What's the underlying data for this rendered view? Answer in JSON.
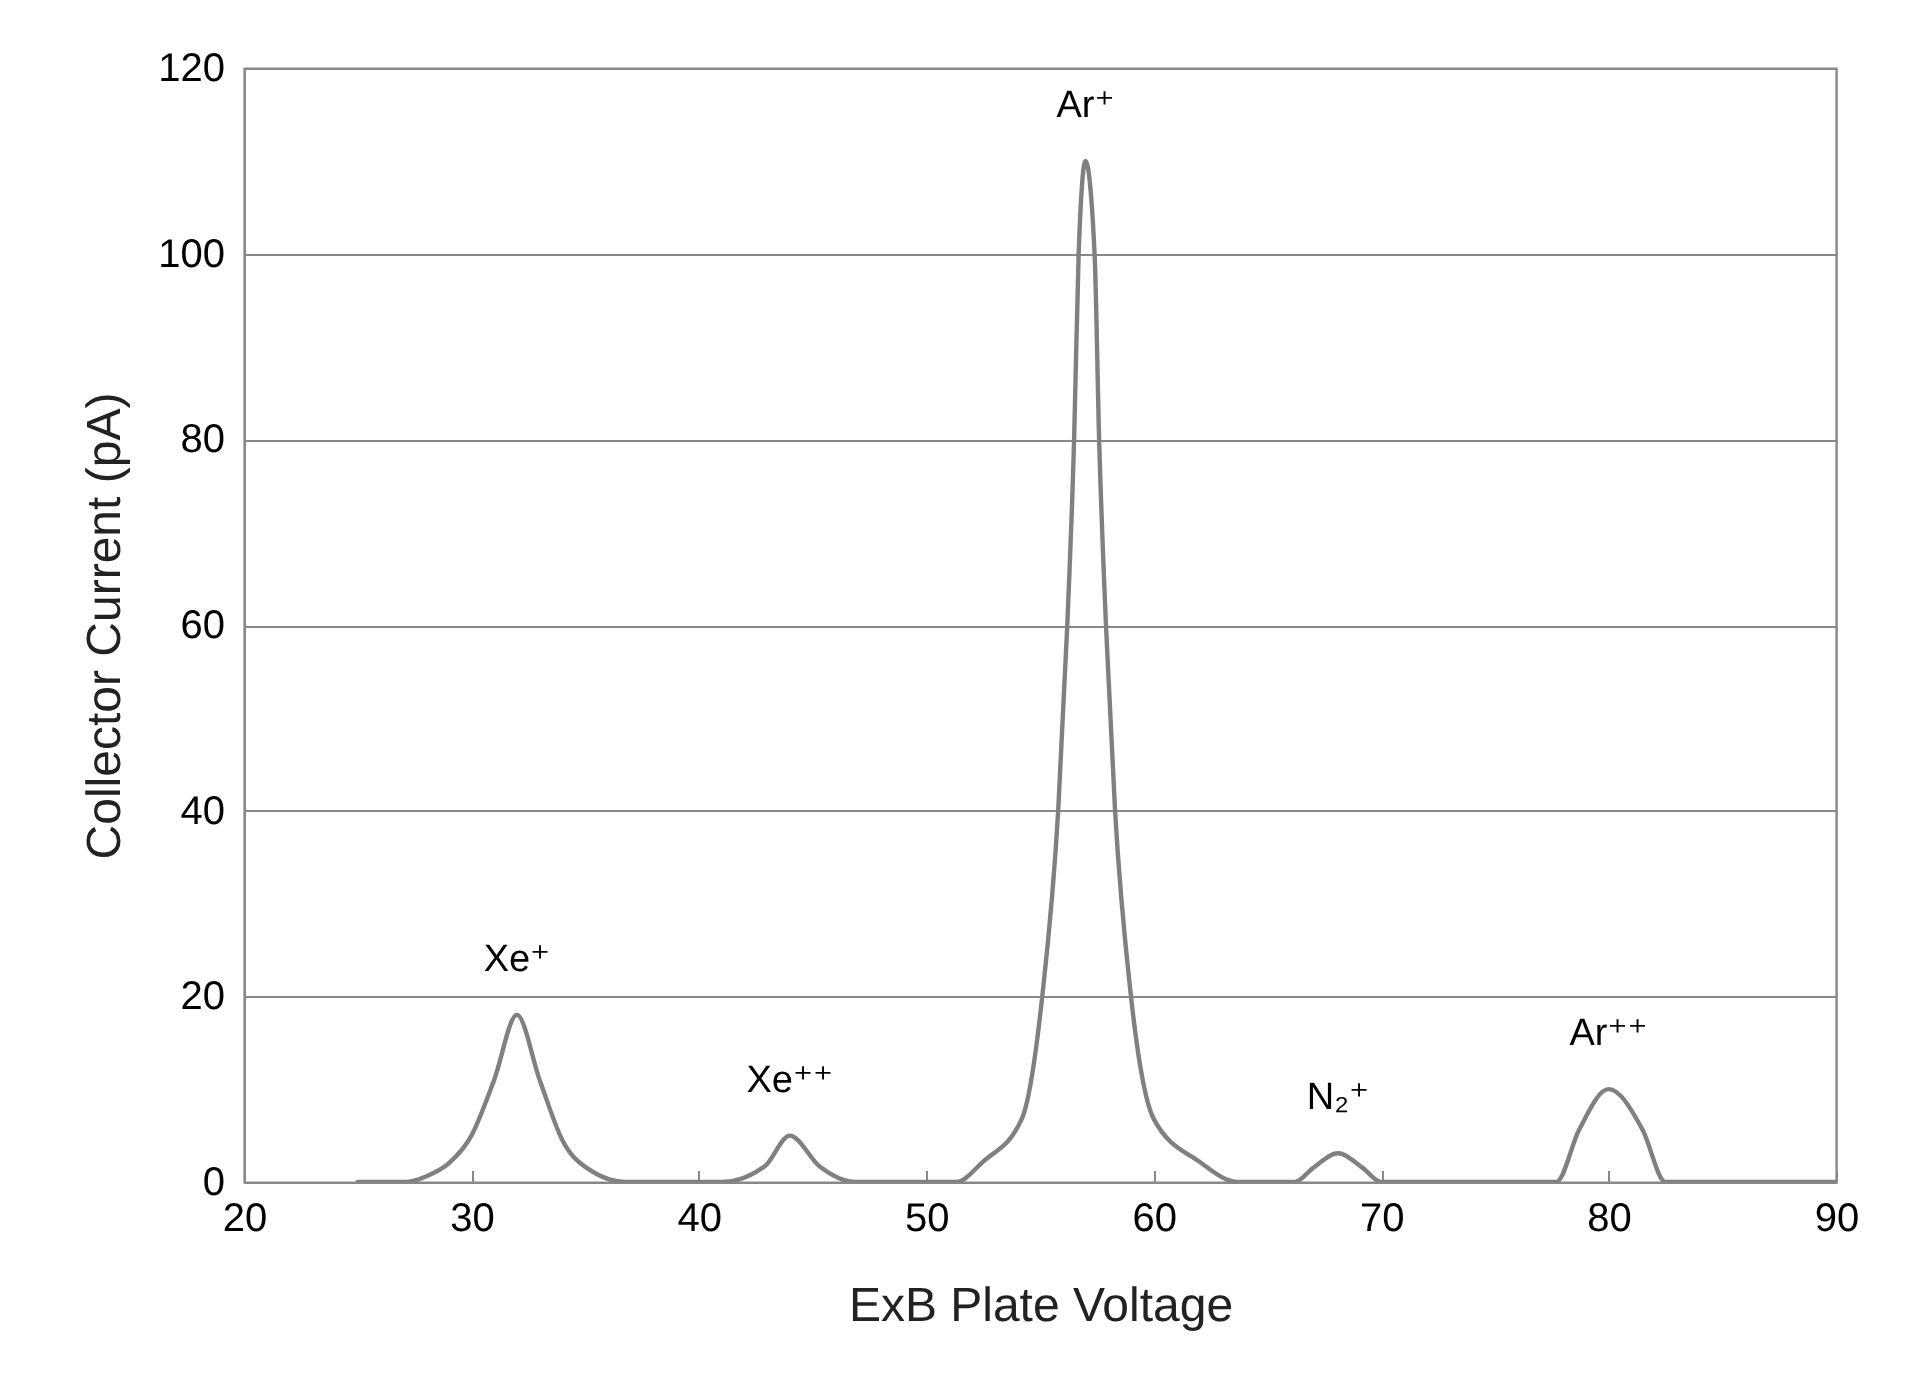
{
  "chart_data": {
    "type": "line",
    "xlabel": "ExB Plate Voltage",
    "ylabel": "Collector Current (pA)",
    "x": [
      25,
      27.1,
      28,
      29,
      30,
      31,
      32,
      33,
      34,
      35.2,
      36.8,
      41,
      42.9,
      44,
      45.3,
      46.9,
      51.3,
      52.5,
      54.2,
      55.1,
      55.8,
      56.2,
      56.5,
      56.7,
      57,
      57.4,
      57.6,
      57.9,
      58.3,
      59,
      60,
      62,
      63.7,
      66.2,
      67,
      68.1,
      69.2,
      70,
      77.7,
      78.7,
      80,
      81.5,
      82.5,
      90
    ],
    "series": [
      {
        "color": "#808080",
        "values": [
          0,
          0,
          0.6,
          2,
          5,
          11,
          18,
          11,
          4.5,
          1.3,
          0,
          0,
          1.7,
          5,
          1.7,
          0,
          0,
          2.2,
          6.8,
          20,
          40,
          60,
          80,
          100,
          110,
          100,
          80,
          60,
          40,
          20,
          6.8,
          2.2,
          0,
          0,
          1.5,
          3.1,
          1.5,
          0,
          0,
          5.6,
          10,
          5.6,
          0,
          0
        ]
      }
    ],
    "xlim": [
      20,
      90
    ],
    "xticks": [
      20,
      30,
      40,
      50,
      60,
      70,
      80,
      90
    ],
    "ylim": [
      0,
      120
    ],
    "yticks": [
      0,
      20,
      40,
      60,
      80,
      100,
      120
    ],
    "grid": "y",
    "marker": "none",
    "line_style": "solid",
    "annotations": [
      {
        "text": "Xe⁺",
        "x": 32,
        "y": 18
      },
      {
        "text": "Xe⁺⁺",
        "x": 44,
        "y": 5
      },
      {
        "text": "Ar⁺",
        "x": 57,
        "y": 110
      },
      {
        "text": "N₂⁺",
        "x": 68.1,
        "y": 3.1
      },
      {
        "text": "Ar⁺⁺",
        "x": 80,
        "y": 10
      }
    ]
  }
}
